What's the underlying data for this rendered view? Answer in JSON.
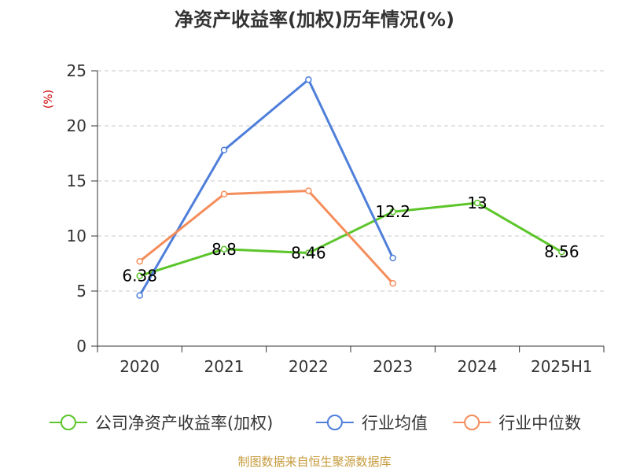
{
  "chart_data": {
    "type": "line",
    "title": "净资产收益率(加权)历年情况(%)",
    "ylabel": "(%)",
    "ylabel_color": "#cc0000",
    "categories": [
      "2020",
      "2021",
      "2022",
      "2023",
      "2024",
      "2025H1"
    ],
    "ylim": [
      0,
      25
    ],
    "yticks": [
      0,
      5,
      10,
      15,
      20,
      25
    ],
    "grid": true,
    "legend_position": "bottom",
    "series": [
      {
        "name": "公司净资产收益率(加权)",
        "color": "#5cc52a",
        "values": [
          6.38,
          8.8,
          8.46,
          12.2,
          13,
          8.56
        ],
        "labels": [
          "6.38",
          "8.8",
          "8.46",
          "12.2",
          "13",
          "8.56"
        ]
      },
      {
        "name": "行业均值",
        "color": "#4f7fda",
        "values": [
          4.6,
          17.8,
          24.2,
          8.0,
          null,
          null
        ]
      },
      {
        "name": "行业中位数",
        "color": "#f58d5a",
        "values": [
          7.7,
          13.8,
          14.1,
          5.7,
          null,
          null
        ]
      }
    ]
  },
  "footer": {
    "source": "制图数据来自恒生聚源数据库",
    "source_color": "#c59a3b"
  }
}
